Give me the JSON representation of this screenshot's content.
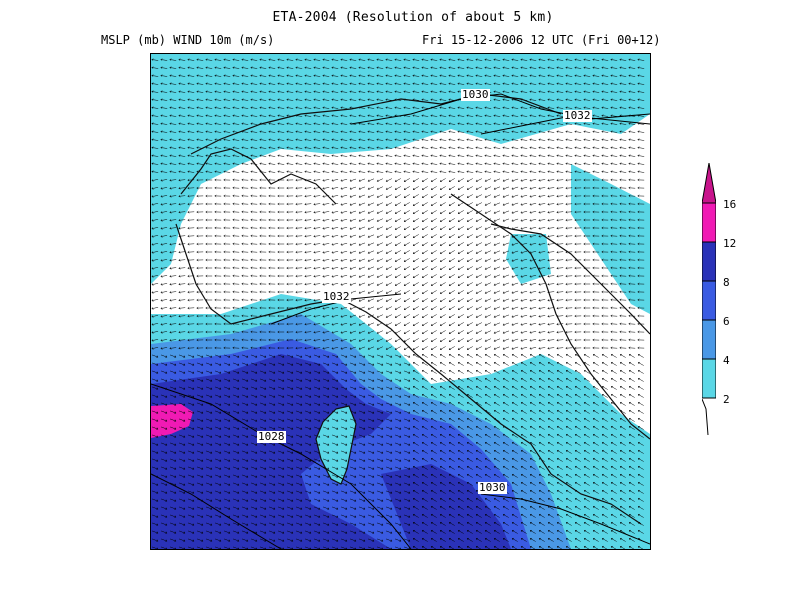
{
  "header": {
    "title": "ETA-2004 (Resolution of about 5 km)",
    "subtitle_left": "MSLP (mb)  WIND 10m (m/s)",
    "subtitle_right": "Fri 15-12-2006 12 UTC (Fri 00+12)"
  },
  "map": {
    "isobar_labels": [
      "1030",
      "1032",
      "1032",
      "1028",
      "1030"
    ],
    "colors": {
      "calm": "#ffffff",
      "c2_4": "#5ad7e6",
      "c4_6": "#4a98e6",
      "c6_8": "#3a5be2",
      "c8_12": "#2a32b8",
      "c12_16": "#f01ab4",
      "c16_plus": "#c8148c",
      "coastline": "#101010",
      "arrows": "#000000"
    }
  },
  "colorbar": {
    "labels": [
      "16",
      "12",
      "8",
      "6",
      "4",
      "2"
    ]
  }
}
